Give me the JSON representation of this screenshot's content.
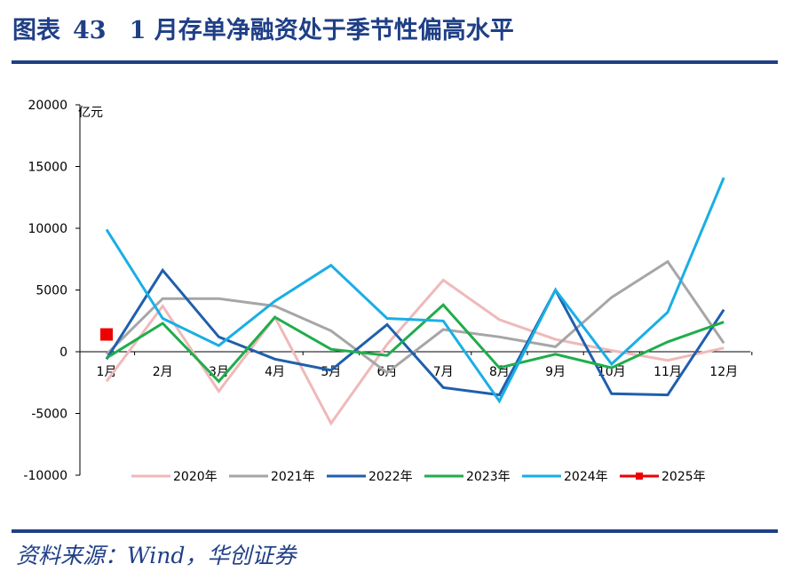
{
  "header": {
    "figure_label": "图表",
    "figure_number": "43",
    "title": "1 月存单净融资处于季节性偏高水平"
  },
  "footer": {
    "source": "资料来源：Wind，华创证券"
  },
  "colors": {
    "brand": "#1f3f86"
  },
  "chart_data": {
    "type": "line",
    "title": "1 月存单净融资处于季节性偏高水平",
    "unit_label": "亿元",
    "ylim": [
      -10000,
      20000
    ],
    "yticks": [
      20000,
      15000,
      10000,
      5000,
      0,
      -5000,
      -10000
    ],
    "ytick_labels": [
      "20000",
      "15000",
      "10000",
      "5000",
      "0",
      "-5000",
      "-10000"
    ],
    "categories": [
      "1月",
      "2月",
      "3月",
      "4月",
      "5月",
      "6月",
      "7月",
      "8月",
      "9月",
      "10月",
      "11月",
      "12月"
    ],
    "legend_position": "bottom",
    "series": [
      {
        "name": "2020年",
        "color": "#efb9b9",
        "marker": "line",
        "values": [
          -2400,
          3700,
          -3200,
          2800,
          -5800,
          600,
          5800,
          2600,
          1000,
          100,
          -700,
          300
        ]
      },
      {
        "name": "2021年",
        "color": "#a6a6a6",
        "marker": "line",
        "values": [
          -200,
          4300,
          4300,
          3700,
          1700,
          -1700,
          1800,
          1200,
          400,
          4400,
          7300,
          700
        ]
      },
      {
        "name": "2022年",
        "color": "#1f5fad",
        "marker": "line",
        "values": [
          -600,
          6600,
          1200,
          -600,
          -1500,
          2200,
          -2900,
          -3500,
          5000,
          -3400,
          -3500,
          3400
        ]
      },
      {
        "name": "2023年",
        "color": "#1fad4b",
        "marker": "line",
        "values": [
          -500,
          2300,
          -2400,
          2800,
          200,
          -300,
          3800,
          -1300,
          -200,
          -1300,
          800,
          2400
        ]
      },
      {
        "name": "2024年",
        "color": "#19aee6",
        "marker": "line",
        "values": [
          9900,
          2700,
          500,
          4100,
          7000,
          2700,
          2500,
          -4000,
          5000,
          -1000,
          3200,
          14100
        ]
      },
      {
        "name": "2025年",
        "color": "#ee0000",
        "marker": "square",
        "values": [
          1400,
          null,
          null,
          null,
          null,
          null,
          null,
          null,
          null,
          null,
          null,
          null
        ]
      }
    ]
  }
}
